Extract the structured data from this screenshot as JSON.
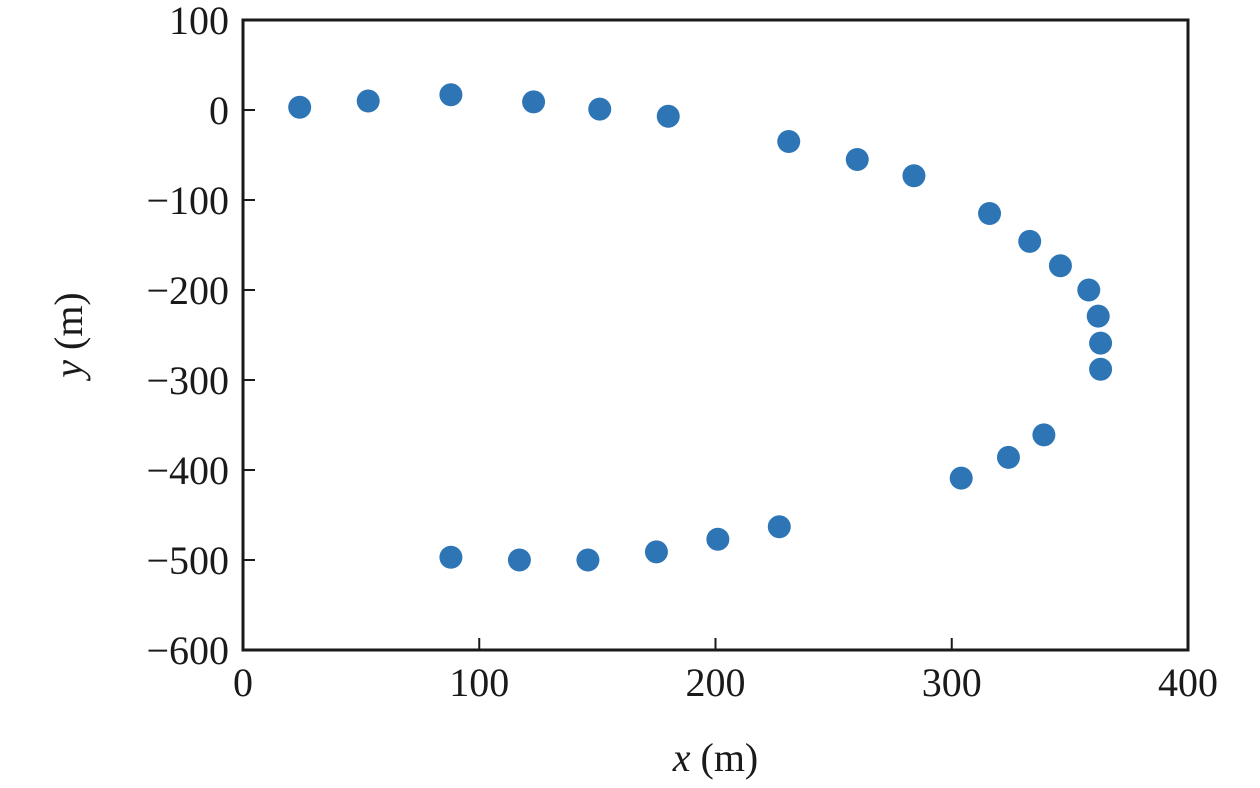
{
  "chart_data": {
    "type": "scatter",
    "xlabel_var": "x",
    "xlabel_unit": " (m)",
    "ylabel_var": "y",
    "ylabel_unit": " (m)",
    "xlim": [
      0,
      400
    ],
    "ylim": [
      -600,
      100
    ],
    "xticks": [
      0,
      100,
      200,
      300,
      400
    ],
    "xtick_labels": [
      "0",
      "100",
      "200",
      "300",
      "400"
    ],
    "yticks": [
      100,
      0,
      -100,
      -200,
      -300,
      -400,
      -500,
      -600
    ],
    "ytick_labels": [
      "100",
      "0",
      "−100",
      "−200",
      "−300",
      "−400",
      "−500",
      "−600"
    ],
    "grid": false,
    "marker_color": "#2e75b6",
    "axis_color": "#1a1a1a",
    "series": [
      {
        "points": [
          {
            "x": 24,
            "y": 3
          },
          {
            "x": 53,
            "y": 10
          },
          {
            "x": 88,
            "y": 17
          },
          {
            "x": 123,
            "y": 9
          },
          {
            "x": 151,
            "y": 1
          },
          {
            "x": 180,
            "y": -7
          },
          {
            "x": 231,
            "y": -35
          },
          {
            "x": 260,
            "y": -55
          },
          {
            "x": 284,
            "y": -73
          },
          {
            "x": 316,
            "y": -115
          },
          {
            "x": 333,
            "y": -146
          },
          {
            "x": 346,
            "y": -173
          },
          {
            "x": 358,
            "y": -200
          },
          {
            "x": 362,
            "y": -229
          },
          {
            "x": 363,
            "y": -259
          },
          {
            "x": 363,
            "y": -288
          },
          {
            "x": 339,
            "y": -361
          },
          {
            "x": 324,
            "y": -386
          },
          {
            "x": 304,
            "y": -409
          },
          {
            "x": 227,
            "y": -463
          },
          {
            "x": 201,
            "y": -477
          },
          {
            "x": 175,
            "y": -491
          },
          {
            "x": 146,
            "y": -500
          },
          {
            "x": 117,
            "y": -500
          },
          {
            "x": 88,
            "y": -497
          }
        ]
      }
    ]
  }
}
